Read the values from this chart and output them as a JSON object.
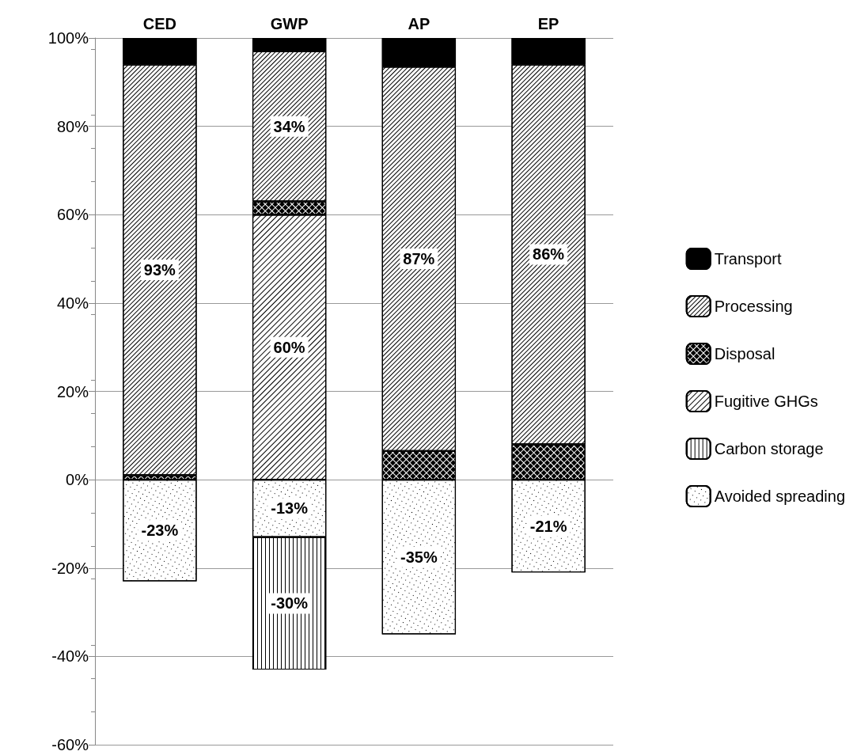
{
  "chart_data": {
    "type": "bar",
    "stacked": true,
    "categories": [
      "CED",
      "GWP",
      "AP",
      "EP"
    ],
    "series": [
      {
        "name": "Avoided spreading",
        "color": "#ffffff",
        "values": [
          -23,
          -13,
          -35,
          -21
        ],
        "value_labels": [
          "-23%",
          "-13%",
          "-35%",
          "-21%"
        ]
      },
      {
        "name": "Carbon storage",
        "color": "#ffffff",
        "values": [
          null,
          -30,
          null,
          null
        ],
        "value_labels": [
          null,
          "-30%",
          null,
          null
        ]
      },
      {
        "name": "Fugitive GHGs",
        "color": "#ffffff",
        "values": [
          null,
          60,
          null,
          null
        ],
        "value_labels": [
          null,
          "60%",
          null,
          null
        ]
      },
      {
        "name": "Disposal",
        "color": "#ffffff",
        "values": [
          1,
          3,
          6.5,
          8
        ]
      },
      {
        "name": "Processing",
        "color": "#ffffff",
        "values": [
          93,
          34,
          87,
          86
        ],
        "value_labels": [
          "93%",
          "34%",
          "87%",
          "86%"
        ]
      },
      {
        "name": "Transport",
        "color": "#000000",
        "values": [
          6,
          3,
          6.5,
          6
        ]
      }
    ],
    "ylim": [
      -60,
      100
    ],
    "yticks": [
      {
        "value": -60,
        "label": "-60%"
      },
      {
        "value": -40,
        "label": "-40%"
      },
      {
        "value": -20,
        "label": "-20%"
      },
      {
        "value": 0,
        "label": "0%"
      },
      {
        "value": 20,
        "label": "20%"
      },
      {
        "value": 40,
        "label": "40%"
      },
      {
        "value": 60,
        "label": "60%"
      },
      {
        "value": 80,
        "label": "80%"
      },
      {
        "value": 100,
        "label": "100%"
      }
    ],
    "grid": "y",
    "legend": "right"
  }
}
